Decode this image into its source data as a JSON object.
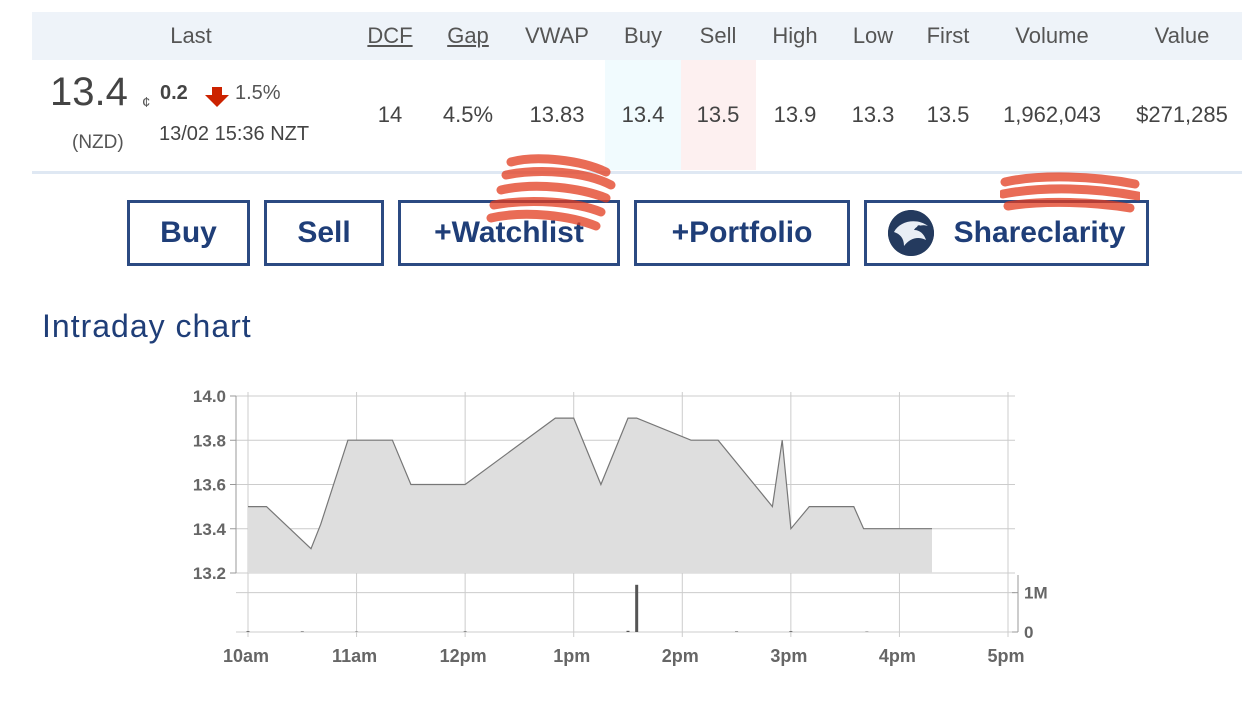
{
  "quote": {
    "headers": {
      "last": "Last",
      "dcf": "DCF",
      "gap": "Gap",
      "vwap": "VWAP",
      "buy": "Buy",
      "sell": "Sell",
      "high": "High",
      "low": "Low",
      "first": "First",
      "volume": "Volume",
      "value": "Value"
    },
    "price": "13.4",
    "price_unit": "¢",
    "change": "0.2",
    "change_direction": "down",
    "change_pct": "1.5%",
    "currency": "(NZD)",
    "timestamp": "13/02 15:36 NZT",
    "values": {
      "dcf": "14",
      "gap": "4.5%",
      "vwap": "13.83",
      "buy": "13.4",
      "sell": "13.5",
      "high": "13.9",
      "low": "13.3",
      "first": "13.5",
      "volume": "1,962,043",
      "value": "$271,285"
    },
    "colors": {
      "down_arrow": "#cc2200",
      "buy_bg": "#f1fbfe",
      "sell_bg": "#fdf0f0",
      "header_bg": "#eef3f9"
    }
  },
  "actions": {
    "buy": "Buy",
    "sell": "Sell",
    "watchlist": "+Watchlist",
    "portfolio": "+Portfolio",
    "shareclarity": "Shareclarity",
    "shareclarity_icon": "eagle-logo-icon",
    "border_color": "#2b4a82"
  },
  "section_title": "Intraday chart",
  "chart_data": {
    "type": "area",
    "x_ticks": [
      "10am",
      "11am",
      "12pm",
      "1pm",
      "2pm",
      "3pm",
      "4pm",
      "5pm"
    ],
    "y_ticks": [
      "14.0",
      "13.8",
      "13.6",
      "13.4",
      "13.2"
    ],
    "ylim": [
      13.2,
      14.0
    ],
    "xlim_hours": [
      10,
      17
    ],
    "grid": true,
    "price_series": {
      "x_hours": [
        10.0,
        10.08,
        10.17,
        10.58,
        10.67,
        10.92,
        11.33,
        11.5,
        12.0,
        12.83,
        13.0,
        13.25,
        13.5,
        13.58,
        13.58,
        14.08,
        14.33,
        14.83,
        14.92,
        14.92,
        15.0,
        15.17,
        15.58,
        15.67,
        16.3
      ],
      "values": [
        13.5,
        13.5,
        13.5,
        13.31,
        13.42,
        13.8,
        13.8,
        13.6,
        13.6,
        13.9,
        13.9,
        13.6,
        13.9,
        13.9,
        13.9,
        13.8,
        13.8,
        13.5,
        13.8,
        13.8,
        13.4,
        13.5,
        13.5,
        13.4,
        13.4
      ]
    },
    "volume_axis": {
      "ticks": [
        "1M",
        "0"
      ],
      "ylim": [
        0,
        1500000
      ]
    },
    "volume_series": {
      "x_hours": [
        10.0,
        10.5,
        11.0,
        12.0,
        13.5,
        13.58,
        14.5,
        15.0,
        15.7
      ],
      "values": [
        20000,
        15000,
        10000,
        15000,
        30000,
        1200000,
        15000,
        20000,
        10000
      ]
    },
    "colors": {
      "fill": "#dedede",
      "line": "#777777",
      "grid": "#cccccc",
      "axis_text": "#666666"
    }
  }
}
